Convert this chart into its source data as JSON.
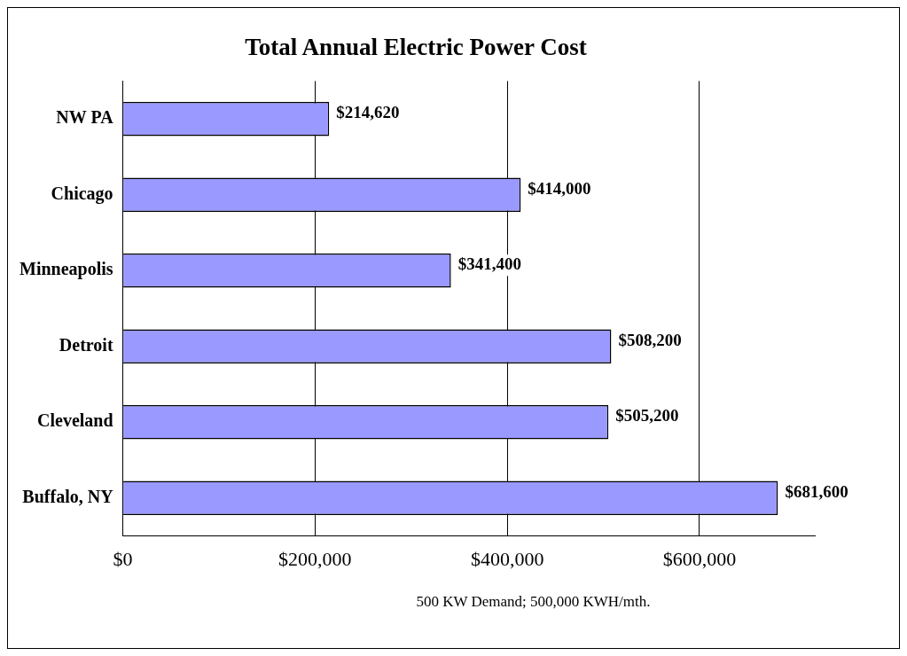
{
  "chart_data": {
    "type": "bar",
    "orientation": "horizontal",
    "title": "Total Annual Electric Power Cost",
    "categories": [
      "NW PA",
      "Chicago",
      "Minneapolis",
      "Detroit",
      "Cleveland",
      "Buffalo, NY"
    ],
    "values": [
      214620,
      414000,
      341400,
      508200,
      505200,
      681600
    ],
    "value_labels": [
      "$214,620",
      "$414,000",
      "$341,400",
      "$508,200",
      "$505,200",
      "$681,600"
    ],
    "color": "#9999ff",
    "xlim": [
      0,
      720000
    ],
    "xticks": [
      {
        "value": 0,
        "label": "$0"
      },
      {
        "value": 200000,
        "label": "$200,000"
      },
      {
        "value": 400000,
        "label": "$400,000"
      },
      {
        "value": 600000,
        "label": "$600,000"
      }
    ],
    "grid": "x",
    "annotations": [
      "500 KW Demand; 500,000 KWH/mth."
    ]
  }
}
